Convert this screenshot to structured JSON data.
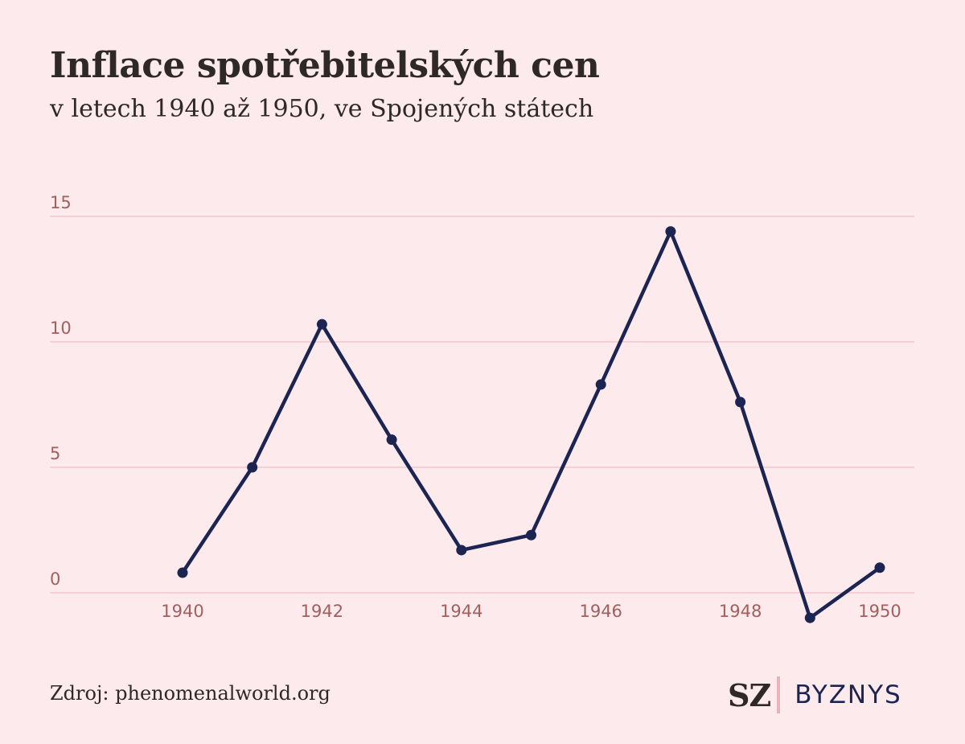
{
  "header": {
    "title": "Inflace spotřebitelských cen",
    "subtitle": "v letech 1940 až 1950, ve Spojených státech"
  },
  "footer": {
    "source": "Zdroj: phenomenalworld.org",
    "logo_sz": "SZ",
    "logo_byznys": "BYZNYS"
  },
  "colors": {
    "background": "#fceaec",
    "line": "#1c2452",
    "grid": "#f1c6cb",
    "tick_label": "#a1605e"
  },
  "chart_data": {
    "type": "line",
    "title": "Inflace spotřebitelských cen",
    "subtitle": "v letech 1940 až 1950, ve Spojených státech",
    "xlabel": "",
    "ylabel": "",
    "x": [
      1940,
      1941,
      1942,
      1943,
      1944,
      1945,
      1946,
      1947,
      1948,
      1949,
      1950
    ],
    "values": [
      0.8,
      5.0,
      10.7,
      6.1,
      1.7,
      2.3,
      8.3,
      14.4,
      7.6,
      -1.0,
      1.0
    ],
    "xticks": [
      "1940",
      "1942",
      "1944",
      "1946",
      "1948",
      "1950"
    ],
    "yticks": [
      "0",
      "5",
      "10",
      "15"
    ],
    "xlim": [
      1939,
      1950.5
    ],
    "ylim": [
      -1.5,
      15
    ],
    "grid": true,
    "legend": "none"
  }
}
